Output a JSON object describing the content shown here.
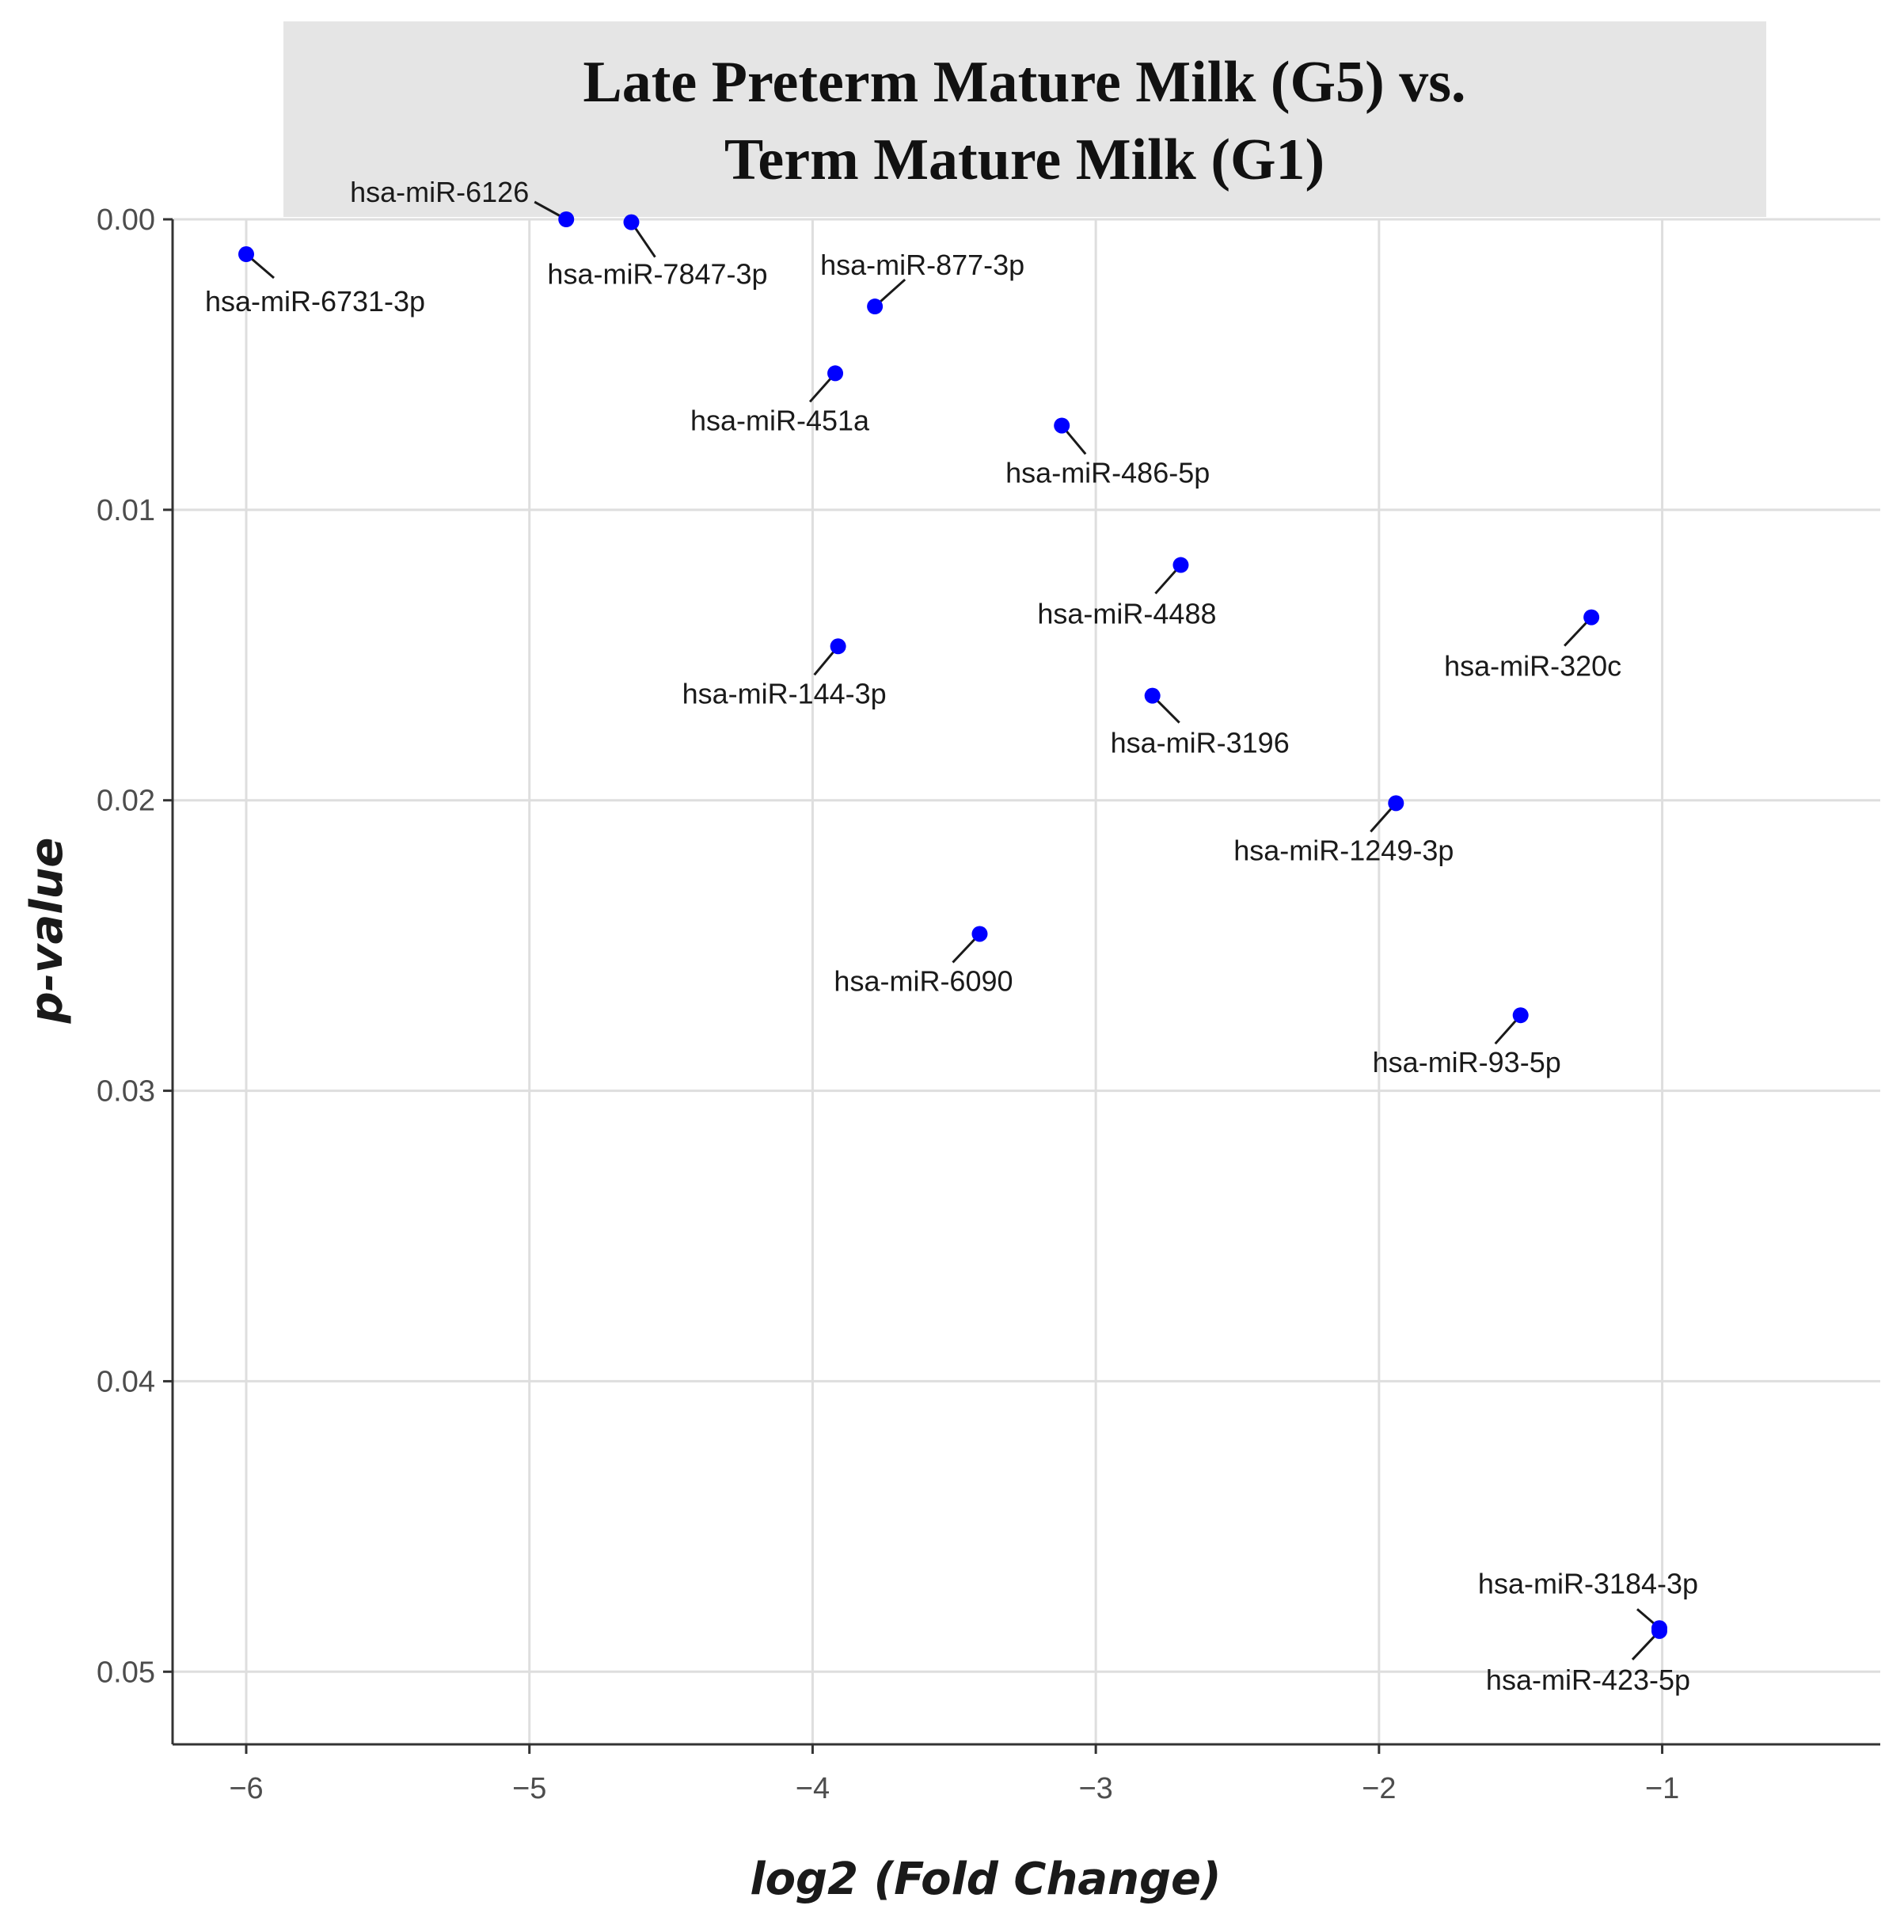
{
  "chart_data": {
    "type": "scatter",
    "title": "Late Preterm Mature Milk (G5) vs. Term Mature Milk (G1)",
    "title_lines": [
      "Late Preterm Mature Milk (G5) vs.",
      "Term Mature Milk (G1)"
    ],
    "xlabel": "log2 (Fold Change)",
    "ylabel": "p-value",
    "xlim": [
      -6.26,
      -0.23
    ],
    "ylim": [
      0.0,
      0.0525
    ],
    "y_reversed": true,
    "grid": true,
    "x_ticks": [
      -6,
      -5,
      -4,
      -3,
      -2,
      -1
    ],
    "x_tick_labels": [
      "−6",
      "−5",
      "−4",
      "−3",
      "−2",
      "−1"
    ],
    "y_ticks": [
      0.0,
      0.01,
      0.02,
      0.03,
      0.04,
      0.05
    ],
    "y_tick_labels": [
      "0.00",
      "0.01",
      "0.02",
      "0.03",
      "0.04",
      "0.05"
    ],
    "point_color": "#0000ff",
    "title_bg_color": "#e5e5e5",
    "grid_color": "#dedede",
    "points": [
      {
        "label": "hsa-miR-6731-3p",
        "x": -6.0,
        "y": 0.0012
      },
      {
        "label": "hsa-miR-6126",
        "x": -4.87,
        "y": 0.0
      },
      {
        "label": "hsa-miR-7847-3p",
        "x": -4.64,
        "y": 0.0001
      },
      {
        "label": "hsa-miR-877-3p",
        "x": -3.78,
        "y": 0.003
      },
      {
        "label": "hsa-miR-451a",
        "x": -3.92,
        "y": 0.0053
      },
      {
        "label": "hsa-miR-486-5p",
        "x": -3.12,
        "y": 0.0071
      },
      {
        "label": "hsa-miR-4488",
        "x": -2.7,
        "y": 0.0119
      },
      {
        "label": "hsa-miR-320c",
        "x": -1.25,
        "y": 0.0137
      },
      {
        "label": "hsa-miR-144-3p",
        "x": -3.91,
        "y": 0.0147
      },
      {
        "label": "hsa-miR-3196",
        "x": -2.8,
        "y": 0.0164
      },
      {
        "label": "hsa-miR-1249-3p",
        "x": -1.94,
        "y": 0.0201
      },
      {
        "label": "hsa-miR-6090",
        "x": -3.41,
        "y": 0.0246
      },
      {
        "label": "hsa-miR-93-5p",
        "x": -1.5,
        "y": 0.0274
      },
      {
        "label": "hsa-miR-3184-3p",
        "x": -1.01,
        "y": 0.0485
      },
      {
        "label": "hsa-miR-423-5p",
        "x": -1.01,
        "y": 0.0486
      }
    ]
  }
}
